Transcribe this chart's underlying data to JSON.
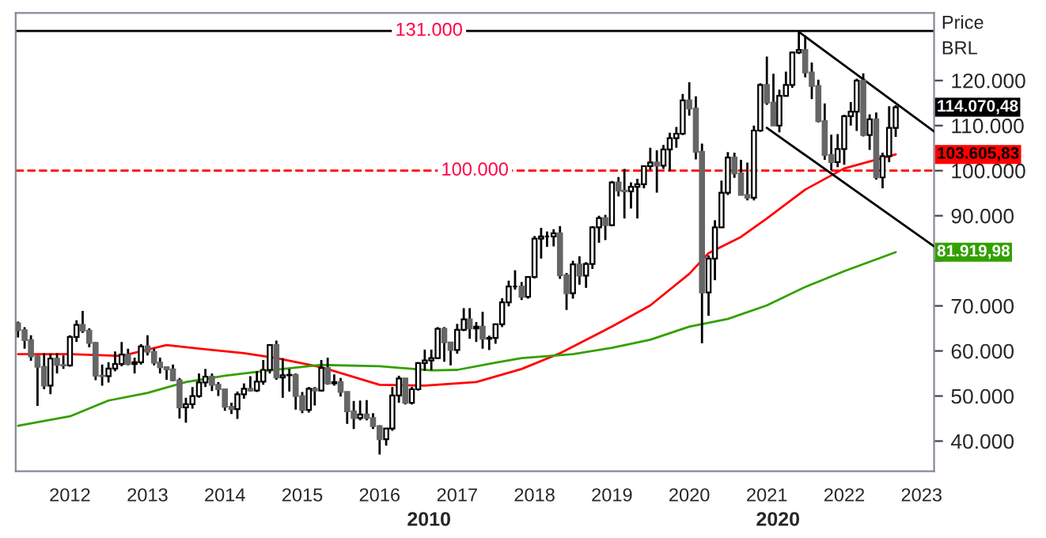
{
  "chart_data": {
    "type": "candlestick",
    "ylabel": "Price\nBRL",
    "xlim": [
      "2011-04-20",
      "2023-03-01"
    ],
    "xticks": [
      "2012",
      "2013",
      "2014",
      "2015",
      "2016",
      "2017",
      "2018",
      "2019",
      "2020",
      "2021",
      "2022",
      "2023"
    ],
    "ylim": [
      33300,
      135000
    ],
    "yticks": [
      {
        "value": 40000,
        "label": "40.000"
      },
      {
        "value": 50000,
        "label": "50.000"
      },
      {
        "value": 60000,
        "label": "60.000"
      },
      {
        "value": 70000,
        "label": "70.000"
      },
      {
        "value": 80000,
        "label": null
      },
      {
        "value": 90000,
        "label": "90.000"
      },
      {
        "value": 100000,
        "label": "100.000"
      },
      {
        "value": 110000,
        "label": "110.000"
      },
      {
        "value": 120000,
        "label": "120.000"
      }
    ],
    "grid": false,
    "legend": false,
    "x": [
      "2011-05",
      "2011-06",
      "2011-07",
      "2011-08",
      "2011-09",
      "2011-10",
      "2011-11",
      "2011-12",
      "2012-01",
      "2012-02",
      "2012-03",
      "2012-04",
      "2012-05",
      "2012-06",
      "2012-07",
      "2012-08",
      "2012-09",
      "2012-10",
      "2012-11",
      "2012-12",
      "2013-01",
      "2013-02",
      "2013-03",
      "2013-04",
      "2013-05",
      "2013-06",
      "2013-07",
      "2013-08",
      "2013-09",
      "2013-10",
      "2013-11",
      "2013-12",
      "2014-01",
      "2014-02",
      "2014-03",
      "2014-04",
      "2014-05",
      "2014-06",
      "2014-07",
      "2014-08",
      "2014-09",
      "2014-10",
      "2014-11",
      "2014-12",
      "2015-01",
      "2015-02",
      "2015-03",
      "2015-04",
      "2015-05",
      "2015-06",
      "2015-07",
      "2015-08",
      "2015-09",
      "2015-10",
      "2015-11",
      "2015-12",
      "2016-01",
      "2016-02",
      "2016-03",
      "2016-04",
      "2016-05",
      "2016-06",
      "2016-07",
      "2016-08",
      "2016-09",
      "2016-10",
      "2016-11",
      "2016-12",
      "2017-01",
      "2017-02",
      "2017-03",
      "2017-04",
      "2017-05",
      "2017-06",
      "2017-07",
      "2017-08",
      "2017-09",
      "2017-10",
      "2017-11",
      "2017-12",
      "2018-01",
      "2018-02",
      "2018-03",
      "2018-04",
      "2018-05",
      "2018-06",
      "2018-07",
      "2018-08",
      "2018-09",
      "2018-10",
      "2018-11",
      "2018-12",
      "2019-01",
      "2019-02",
      "2019-03",
      "2019-04",
      "2019-05",
      "2019-06",
      "2019-07",
      "2019-08",
      "2019-09",
      "2019-10",
      "2019-11",
      "2019-12",
      "2020-01",
      "2020-02",
      "2020-03",
      "2020-04",
      "2020-05",
      "2020-06",
      "2020-07",
      "2020-08",
      "2020-09",
      "2020-10",
      "2020-11",
      "2020-12",
      "2021-01",
      "2021-02",
      "2021-03",
      "2021-04",
      "2021-05",
      "2021-06",
      "2021-07",
      "2021-08",
      "2021-09",
      "2021-10",
      "2021-11",
      "2021-12",
      "2022-01",
      "2022-02",
      "2022-03",
      "2022-04",
      "2022-05",
      "2022-06",
      "2022-07",
      "2022-08",
      "2022-09"
    ],
    "ohlc": [
      [
        66100,
        66500,
        63000,
        64600
      ],
      [
        64600,
        65300,
        60500,
        62400
      ],
      [
        62400,
        63500,
        57800,
        58800
      ],
      [
        58800,
        59000,
        47800,
        56500
      ],
      [
        56500,
        59500,
        51500,
        52300
      ],
      [
        52300,
        59400,
        50400,
        58300
      ],
      [
        58300,
        59500,
        55000,
        56900
      ],
      [
        56900,
        59000,
        56000,
        56800
      ],
      [
        56800,
        63500,
        56500,
        63100
      ],
      [
        63100,
        66800,
        62000,
        65800
      ],
      [
        65800,
        68900,
        64000,
        64500
      ],
      [
        64500,
        65000,
        60800,
        61800
      ],
      [
        61800,
        62000,
        53500,
        54500
      ],
      [
        54500,
        57000,
        52300,
        54400
      ],
      [
        54400,
        57500,
        53000,
        56100
      ],
      [
        56100,
        59900,
        55500,
        57100
      ],
      [
        57100,
        62000,
        56600,
        59200
      ],
      [
        59200,
        60500,
        56800,
        57100
      ],
      [
        57100,
        58500,
        55000,
        57500
      ],
      [
        57500,
        61500,
        57000,
        61000
      ],
      [
        61000,
        63500,
        59000,
        59800
      ],
      [
        59800,
        60500,
        56800,
        57400
      ],
      [
        57400,
        58500,
        55000,
        56400
      ],
      [
        56400,
        56500,
        53600,
        55900
      ],
      [
        55900,
        57000,
        53300,
        53500
      ],
      [
        53500,
        54000,
        45000,
        47500
      ],
      [
        47500,
        49600,
        44100,
        48200
      ],
      [
        48200,
        52000,
        47200,
        50000
      ],
      [
        50000,
        55000,
        49600,
        53000
      ],
      [
        53000,
        56000,
        52000,
        54300
      ],
      [
        54300,
        55000,
        51100,
        52500
      ],
      [
        52500,
        53100,
        50000,
        51500
      ],
      [
        51500,
        51600,
        46700,
        47600
      ],
      [
        47600,
        48500,
        46000,
        47100
      ],
      [
        47100,
        51000,
        44900,
        50400
      ],
      [
        50400,
        52800,
        49400,
        51600
      ],
      [
        51600,
        54400,
        51000,
        51200
      ],
      [
        51200,
        55500,
        50900,
        53200
      ],
      [
        53200,
        58000,
        52500,
        55800
      ],
      [
        55800,
        61500,
        55000,
        61300
      ],
      [
        61300,
        62300,
        53600,
        54100
      ],
      [
        54100,
        58400,
        49600,
        54600
      ],
      [
        54600,
        56000,
        51000,
        54700
      ],
      [
        54700,
        55000,
        47000,
        50000
      ],
      [
        50000,
        50900,
        46200,
        46900
      ],
      [
        46900,
        52000,
        46300,
        51600
      ],
      [
        51600,
        52000,
        47900,
        51200
      ],
      [
        51200,
        58000,
        51000,
        56200
      ],
      [
        56200,
        58500,
        52500,
        52800
      ],
      [
        52800,
        54800,
        52300,
        53100
      ],
      [
        53100,
        54000,
        49900,
        50900
      ],
      [
        50900,
        51000,
        43800,
        46600
      ],
      [
        46600,
        48900,
        42700,
        45100
      ],
      [
        45100,
        49000,
        44600,
        45900
      ],
      [
        45900,
        49100,
        44600,
        45100
      ],
      [
        45100,
        46200,
        42700,
        43300
      ],
      [
        43300,
        43500,
        37000,
        40400
      ],
      [
        40400,
        42800,
        39000,
        42800
      ],
      [
        42800,
        52000,
        42300,
        50100
      ],
      [
        50100,
        54500,
        48500,
        53900
      ],
      [
        53900,
        54000,
        48100,
        48500
      ],
      [
        48500,
        52000,
        48100,
        51500
      ],
      [
        51500,
        57500,
        51200,
        57300
      ],
      [
        57300,
        60300,
        55600,
        57900
      ],
      [
        57900,
        60300,
        55700,
        58400
      ],
      [
        58400,
        65300,
        58200,
        64900
      ],
      [
        64900,
        65300,
        57600,
        61900
      ],
      [
        61900,
        61900,
        56800,
        60200
      ],
      [
        60200,
        66000,
        59400,
        64700
      ],
      [
        64700,
        69500,
        64400,
        67000
      ],
      [
        67000,
        69500,
        62700,
        65000
      ],
      [
        65000,
        66400,
        62000,
        65400
      ],
      [
        65400,
        68700,
        60500,
        62700
      ],
      [
        62700,
        63400,
        60200,
        62900
      ],
      [
        62900,
        66100,
        61600,
        65900
      ],
      [
        65900,
        71700,
        65300,
        70800
      ],
      [
        70800,
        75600,
        69900,
        74300
      ],
      [
        74300,
        77900,
        73600,
        74300
      ],
      [
        74300,
        75300,
        71300,
        72000
      ],
      [
        72000,
        76500,
        71600,
        76400
      ],
      [
        76400,
        85500,
        76100,
        84900
      ],
      [
        84900,
        87300,
        80500,
        85400
      ],
      [
        85400,
        86500,
        83100,
        85400
      ],
      [
        85400,
        87000,
        83200,
        86100
      ],
      [
        86100,
        87700,
        76000,
        76800
      ],
      [
        76800,
        77300,
        69100,
        72800
      ],
      [
        72800,
        80000,
        71600,
        79200
      ],
      [
        79200,
        81000,
        74700,
        76700
      ],
      [
        76700,
        79700,
        74000,
        79300
      ],
      [
        79300,
        87700,
        78200,
        87400
      ],
      [
        87400,
        90000,
        84000,
        89500
      ],
      [
        89500,
        90200,
        84600,
        87900
      ],
      [
        87900,
        97700,
        87700,
        97400
      ],
      [
        97400,
        98600,
        94300,
        95600
      ],
      [
        95600,
        100400,
        89400,
        95400
      ],
      [
        95400,
        97400,
        91600,
        96400
      ],
      [
        96400,
        98200,
        89400,
        97000
      ],
      [
        97000,
        101000,
        96100,
        101000
      ],
      [
        101000,
        105100,
        100200,
        101800
      ],
      [
        101800,
        104500,
        95100,
        101100
      ],
      [
        101100,
        105700,
        100400,
        104700
      ],
      [
        104700,
        108400,
        99900,
        107200
      ],
      [
        107200,
        109700,
        105100,
        108200
      ],
      [
        108200,
        117000,
        107900,
        115600
      ],
      [
        115600,
        119600,
        112200,
        113800
      ],
      [
        113800,
        116500,
        102500,
        104200
      ],
      [
        104200,
        106000,
        61700,
        73000
      ],
      [
        73000,
        81200,
        67800,
        80500
      ],
      [
        80500,
        89000,
        75700,
        87400
      ],
      [
        87400,
        97800,
        87300,
        95100
      ],
      [
        95100,
        104100,
        94600,
        102900
      ],
      [
        102900,
        104000,
        98400,
        99400
      ],
      [
        99400,
        102400,
        94600,
        94600
      ],
      [
        94600,
        101800,
        93400,
        94000
      ],
      [
        94000,
        110000,
        93400,
        108900
      ],
      [
        108900,
        119400,
        108600,
        119000
      ],
      [
        119000,
        125300,
        114600,
        115100
      ],
      [
        115100,
        121500,
        110000,
        110000
      ],
      [
        110000,
        118000,
        108500,
        116600
      ],
      [
        116600,
        122000,
        116400,
        119000
      ],
      [
        119000,
        126400,
        118400,
        126200
      ],
      [
        126200,
        130800,
        125900,
        126800
      ],
      [
        126800,
        130000,
        120700,
        121800
      ],
      [
        121800,
        124000,
        115900,
        118800
      ],
      [
        118800,
        120200,
        110700,
        111000
      ],
      [
        111000,
        114900,
        102400,
        103500
      ],
      [
        103500,
        108000,
        100100,
        101900
      ],
      [
        101900,
        108100,
        100800,
        104800
      ],
      [
        104800,
        112400,
        101300,
        112100
      ],
      [
        112100,
        115200,
        110000,
        113100
      ],
      [
        113100,
        120400,
        108800,
        120000
      ],
      [
        120000,
        121600,
        107600,
        107900
      ],
      [
        107900,
        112500,
        104600,
        111400
      ],
      [
        111400,
        112900,
        98000,
        98500
      ],
      [
        98500,
        104000,
        96100,
        103200
      ],
      [
        103200,
        114300,
        101900,
        109500
      ],
      [
        109500,
        114500,
        107500,
        114070.48
      ]
    ],
    "series": [
      {
        "type": "line",
        "color": "#ff0000",
        "x": [
          "2011-05",
          "2012-01",
          "2012-09",
          "2013-04",
          "2013-09",
          "2014-04",
          "2014-09",
          "2015-04",
          "2016-01",
          "2016-08",
          "2017-04",
          "2017-11",
          "2018-05",
          "2019-01",
          "2019-07",
          "2020-01",
          "2020-04",
          "2020-09",
          "2021-01",
          "2021-07",
          "2022-01",
          "2022-09"
        ],
        "values": [
          59300,
          59300,
          58900,
          61300,
          60500,
          59500,
          58400,
          56400,
          52500,
          52300,
          53100,
          56000,
          59500,
          65400,
          70100,
          77100,
          81700,
          85300,
          89400,
          95800,
          100500,
          103605.83
        ]
      },
      {
        "type": "line",
        "color": "#33a000",
        "x": [
          "2011-05",
          "2012-01",
          "2012-07",
          "2013-01",
          "2013-07",
          "2014-01",
          "2014-08",
          "2015-04",
          "2016-01",
          "2016-09",
          "2017-01",
          "2017-07",
          "2017-11",
          "2018-07",
          "2019-01",
          "2019-07",
          "2020-01",
          "2020-07",
          "2021-01",
          "2021-07",
          "2022-01",
          "2022-09"
        ],
        "values": [
          43400,
          45500,
          49000,
          50700,
          53100,
          54500,
          55700,
          56900,
          56600,
          55700,
          55800,
          57400,
          58400,
          59300,
          60700,
          62500,
          65400,
          67100,
          70100,
          74200,
          77700,
          81919.98
        ]
      },
      {
        "type": "line",
        "color": "#000000",
        "x": [
          "2021-06",
          "2023-03"
        ],
        "values": [
          130800,
          108700
        ]
      },
      {
        "type": "line",
        "color": "#000000",
        "x": [
          "2021-01",
          "2023-03"
        ],
        "values": [
          109500,
          83200
        ]
      }
    ],
    "ref_lines": [
      {
        "axis": "y",
        "value": 131000,
        "label": "131.000",
        "color": "#000000",
        "line_style": "solid"
      },
      {
        "axis": "y",
        "value": 100000,
        "label": "100.000",
        "color": "#ff0000",
        "line_style": "dashed"
      }
    ],
    "annotations": [
      {
        "text": "114.070,48",
        "x": "2022-09",
        "y": 114070.48
      },
      {
        "text": "103.605,83",
        "x": "2022-09",
        "y": 103605.83
      },
      {
        "text": "81.919,98",
        "x": "2022-09",
        "y": 81919.98
      },
      "2010",
      "2020"
    ]
  }
}
